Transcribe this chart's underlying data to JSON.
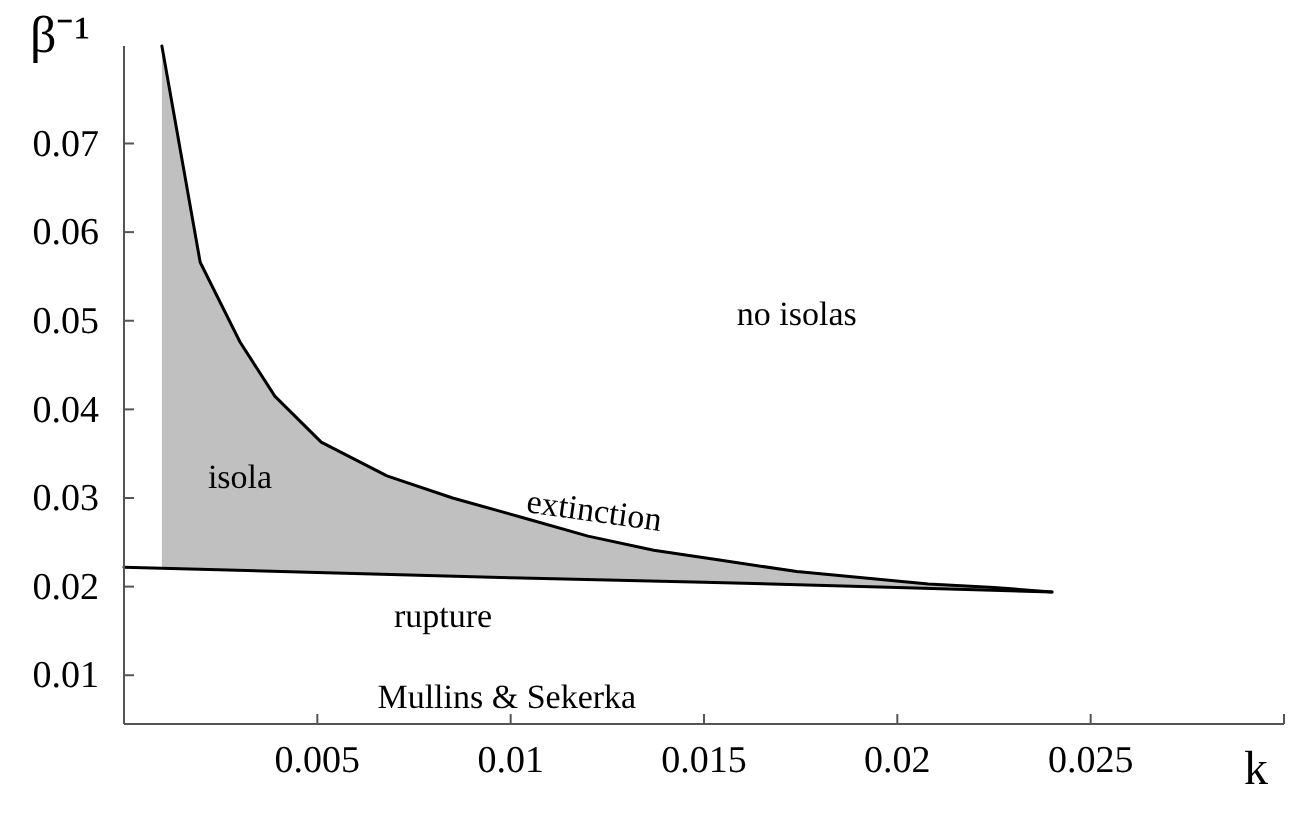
{
  "chart_data": {
    "type": "line",
    "xlabel": "k",
    "ylabel": "β⁻¹",
    "xlim": [
      0,
      0.03
    ],
    "ylim": [
      0.0045,
      0.081
    ],
    "xticks": [
      0.005,
      0.01,
      0.015,
      0.02,
      0.025,
      {
        "value": 0.03,
        "label": null
      }
    ],
    "yticks": [
      0.01,
      0.02,
      0.03,
      0.04,
      0.05,
      0.06,
      0.07
    ],
    "series": [
      {
        "color": "#000000",
        "x": [
          0.00098,
          0.00197,
          0.003,
          0.0039,
          0.0051,
          0.0068,
          0.0085,
          0.0103,
          0.012,
          0.0137,
          0.0154,
          0.0174,
          0.0191,
          0.0208,
          0.0225,
          0.024
        ],
        "values": [
          0.081,
          0.0566,
          0.0476,
          0.0415,
          0.0363,
          0.0325,
          0.03,
          0.0278,
          0.0257,
          0.0241,
          0.023,
          0.0217,
          0.021,
          0.0203,
          0.0199,
          0.0194
        ],
        "upper": [
          0.081,
          0.0566,
          0.0476,
          0.0415,
          0.0363,
          0.0325,
          0.03,
          0.0278,
          0.0257,
          0.0241,
          0.023,
          0.0217,
          0.021,
          0.0203,
          0.0199,
          0.0194
        ],
        "lower": [
          0.0221,
          0.022,
          0.0218,
          0.0217,
          0.0216,
          0.0214,
          0.0212,
          0.021,
          0.0208,
          0.0206,
          0.0204,
          0.0202,
          0.02,
          0.0198,
          0.0196,
          0.0194
        ]
      },
      {
        "color": "#000000",
        "x": [
          0,
          0.005,
          0.01,
          0.015,
          0.02,
          0.024
        ],
        "values": [
          0.0222,
          0.0216,
          0.021,
          0.0205,
          0.0199,
          0.0194
        ]
      }
    ],
    "annotations": [
      "isola",
      "no isolas",
      "extinction",
      "rupture",
      "Mullins & Sekerka"
    ]
  }
}
